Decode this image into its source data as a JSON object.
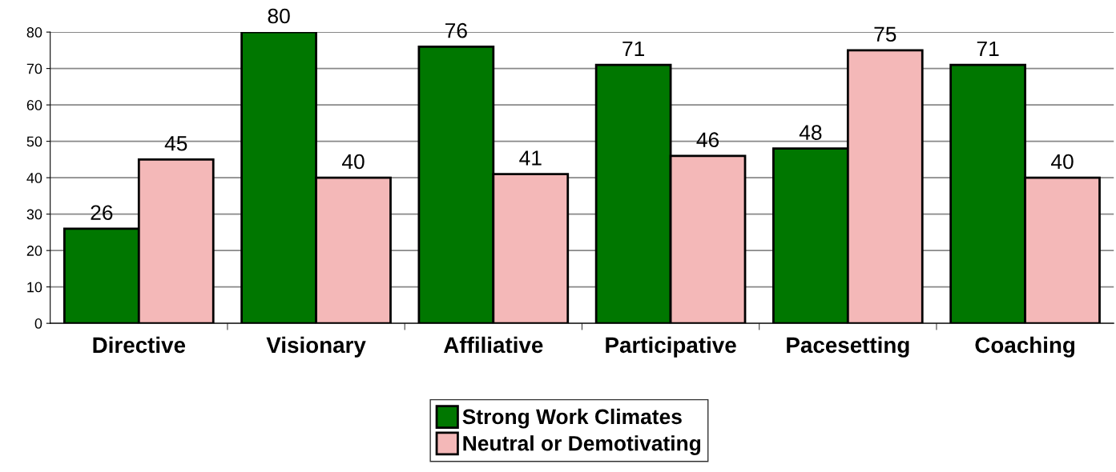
{
  "chart_data": {
    "type": "bar",
    "categories": [
      "Directive",
      "Visionary",
      "Affiliative",
      "Participative",
      "Pacesetting",
      "Coaching"
    ],
    "series": [
      {
        "name": "Strong Work Climates",
        "color": "#007700",
        "values": [
          26,
          80,
          76,
          71,
          48,
          71
        ]
      },
      {
        "name": "Neutral or Demotivating",
        "color": "#f4b8b8",
        "values": [
          45,
          40,
          41,
          46,
          75,
          40
        ]
      }
    ],
    "ylim": [
      0,
      80
    ],
    "yticks": [
      0,
      10,
      20,
      30,
      40,
      50,
      60,
      70,
      80
    ],
    "grid": "y",
    "legend": "bottom",
    "data_labels": true
  }
}
